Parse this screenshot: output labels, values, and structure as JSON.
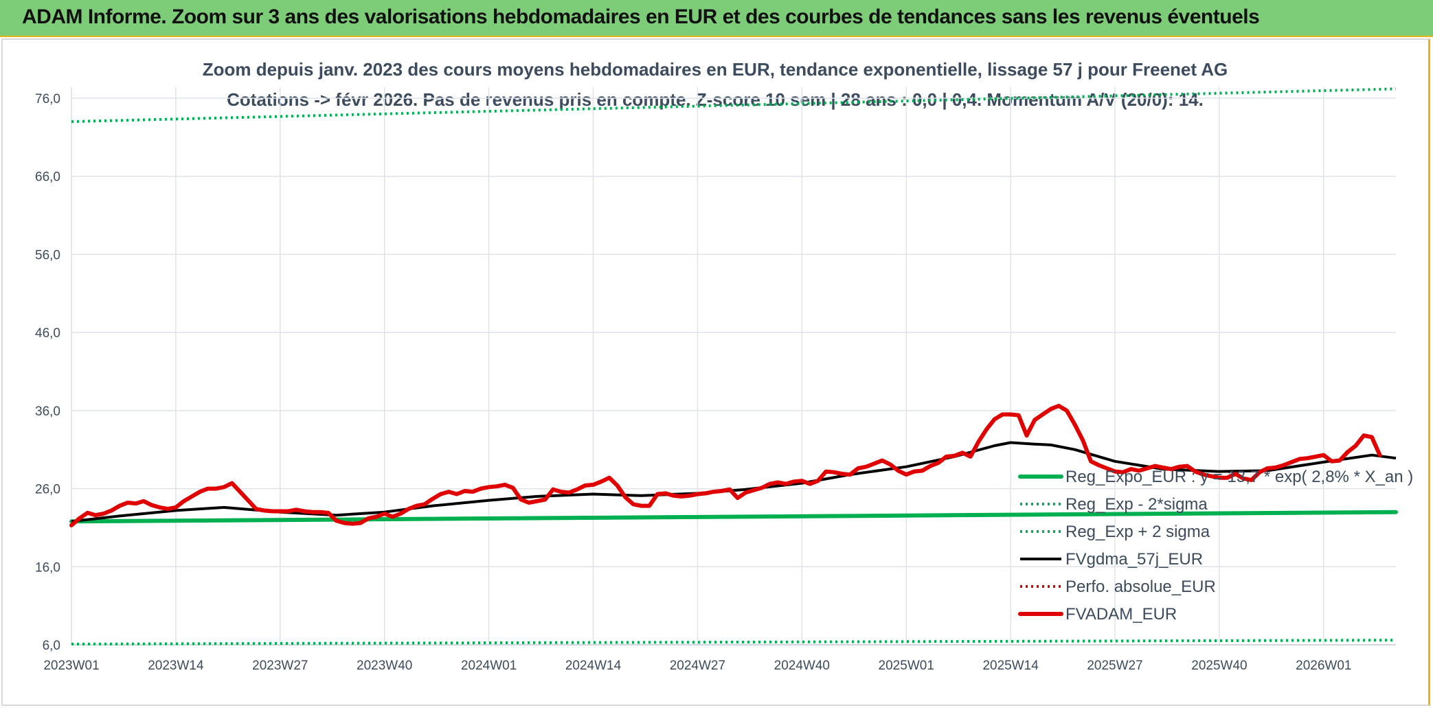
{
  "header": {
    "banner": "ADAM Informe. Zoom sur 3 ans des valorisations hebdomadaires en EUR et des courbes de tendances sans les revenus éventuels"
  },
  "chart_data": {
    "type": "line",
    "title": "Zoom depuis janv. 2023 des cours moyens hebdomadaires en EUR, tendance exponentielle, lissage 57 j pour Freenet AG",
    "subtitle": "Cotations -> févr 2026. Pas de revenus pris en compte. Z-score 10 sem | 28 ans : 0,0 | 0,4. Momentum A/V (20/0): 14.",
    "ylim": [
      6,
      76
    ],
    "y_ticks": [
      "6,0",
      "16,0",
      "26,0",
      "36,0",
      "46,0",
      "56,0",
      "66,0",
      "76,0"
    ],
    "x_ticks": [
      "2023W01",
      "2023W14",
      "2023W27",
      "2023W40",
      "2024W01",
      "2024W14",
      "2024W27",
      "2024W40",
      "2025W01",
      "2025W14",
      "2025W27",
      "2025W40",
      "2026W01"
    ],
    "x_tick_weeks": [
      0,
      13,
      26,
      39,
      52,
      65,
      78,
      91,
      104,
      117,
      130,
      143,
      156
    ],
    "x_range_weeks": [
      0,
      165
    ],
    "grid": true,
    "legend_position": "bottom-right",
    "series": [
      {
        "name": "Reg_Expo_EUR : y = 13,7 * exp( 2,8% * X_an )",
        "color": "#00b050",
        "style": "thick",
        "points": [
          [
            0,
            21.8
          ],
          [
            165,
            23.0
          ]
        ]
      },
      {
        "name": "Reg_Exp - 2*sigma",
        "color": "#00b050",
        "style": "dotted",
        "points": [
          [
            0,
            6.1
          ],
          [
            165,
            6.6
          ]
        ]
      },
      {
        "name": "Reg_Exp + 2 sigma",
        "color": "#00b050",
        "style": "dotted",
        "points": [
          [
            0,
            73.0
          ],
          [
            165,
            77.2
          ]
        ]
      },
      {
        "name": "FVgdma_57j_EUR",
        "color": "#000000",
        "style": "solid",
        "points": [
          [
            0,
            21.8
          ],
          [
            6,
            22.5
          ],
          [
            13,
            23.2
          ],
          [
            19,
            23.6
          ],
          [
            26,
            23.0
          ],
          [
            33,
            22.6
          ],
          [
            39,
            23.0
          ],
          [
            45,
            23.8
          ],
          [
            52,
            24.5
          ],
          [
            58,
            25.0
          ],
          [
            65,
            25.3
          ],
          [
            71,
            25.1
          ],
          [
            78,
            25.4
          ],
          [
            84,
            25.9
          ],
          [
            91,
            26.7
          ],
          [
            97,
            27.8
          ],
          [
            104,
            28.8
          ],
          [
            110,
            30.1
          ],
          [
            115,
            31.5
          ],
          [
            117,
            31.9
          ],
          [
            120,
            31.7
          ],
          [
            122,
            31.6
          ],
          [
            125,
            31.0
          ],
          [
            130,
            29.5
          ],
          [
            136,
            28.5
          ],
          [
            143,
            28.2
          ],
          [
            149,
            28.3
          ],
          [
            156,
            29.4
          ],
          [
            162,
            30.3
          ],
          [
            165,
            29.9
          ]
        ]
      },
      {
        "name": "Perfo. absolue_EUR",
        "color": "#e00000",
        "style": "dotted",
        "points": []
      },
      {
        "name": "FVADAM_EUR",
        "color": "#e00000",
        "style": "thick",
        "points": [
          [
            0,
            21.3
          ],
          [
            1,
            22.2
          ],
          [
            2,
            22.9
          ],
          [
            3,
            22.6
          ],
          [
            4,
            22.8
          ],
          [
            5,
            23.2
          ],
          [
            6,
            23.8
          ],
          [
            7,
            24.2
          ],
          [
            8,
            24.1
          ],
          [
            9,
            24.4
          ],
          [
            10,
            23.9
          ],
          [
            11,
            23.6
          ],
          [
            12,
            23.4
          ],
          [
            13,
            23.6
          ],
          [
            14,
            24.4
          ],
          [
            15,
            25.0
          ],
          [
            16,
            25.6
          ],
          [
            17,
            26.0
          ],
          [
            18,
            26.0
          ],
          [
            19,
            26.2
          ],
          [
            20,
            26.7
          ],
          [
            21,
            25.6
          ],
          [
            22,
            24.5
          ],
          [
            23,
            23.4
          ],
          [
            24,
            23.2
          ],
          [
            25,
            23.1
          ],
          [
            26,
            23.1
          ],
          [
            27,
            23.1
          ],
          [
            28,
            23.3
          ],
          [
            29,
            23.1
          ],
          [
            30,
            23.0
          ],
          [
            31,
            23.0
          ],
          [
            32,
            22.9
          ],
          [
            33,
            21.9
          ],
          [
            34,
            21.6
          ],
          [
            35,
            21.5
          ],
          [
            36,
            21.6
          ],
          [
            37,
            22.2
          ],
          [
            38,
            22.4
          ],
          [
            39,
            22.8
          ],
          [
            40,
            22.4
          ],
          [
            41,
            22.8
          ],
          [
            42,
            23.4
          ],
          [
            43,
            23.8
          ],
          [
            44,
            24.0
          ],
          [
            45,
            24.7
          ],
          [
            46,
            25.3
          ],
          [
            47,
            25.6
          ],
          [
            48,
            25.3
          ],
          [
            49,
            25.7
          ],
          [
            50,
            25.6
          ],
          [
            51,
            26.0
          ],
          [
            52,
            26.2
          ],
          [
            53,
            26.3
          ],
          [
            54,
            26.5
          ],
          [
            55,
            26.1
          ],
          [
            56,
            24.6
          ],
          [
            57,
            24.2
          ],
          [
            58,
            24.4
          ],
          [
            59,
            24.6
          ],
          [
            60,
            25.9
          ],
          [
            61,
            25.6
          ],
          [
            62,
            25.5
          ],
          [
            63,
            25.9
          ],
          [
            64,
            26.4
          ],
          [
            65,
            26.5
          ],
          [
            66,
            26.9
          ],
          [
            67,
            27.4
          ],
          [
            68,
            26.4
          ],
          [
            69,
            24.9
          ],
          [
            70,
            24.0
          ],
          [
            71,
            23.8
          ],
          [
            72,
            23.8
          ],
          [
            73,
            25.3
          ],
          [
            74,
            25.4
          ],
          [
            75,
            25.1
          ],
          [
            76,
            25.0
          ],
          [
            77,
            25.1
          ],
          [
            78,
            25.3
          ],
          [
            79,
            25.4
          ],
          [
            80,
            25.6
          ],
          [
            81,
            25.7
          ],
          [
            82,
            25.9
          ],
          [
            83,
            24.8
          ],
          [
            84,
            25.5
          ],
          [
            85,
            25.8
          ],
          [
            86,
            26.1
          ],
          [
            87,
            26.6
          ],
          [
            88,
            26.8
          ],
          [
            89,
            26.6
          ],
          [
            90,
            26.9
          ],
          [
            91,
            27.0
          ],
          [
            92,
            26.6
          ],
          [
            93,
            27.0
          ],
          [
            94,
            28.2
          ],
          [
            95,
            28.1
          ],
          [
            96,
            27.9
          ],
          [
            97,
            27.8
          ],
          [
            98,
            28.6
          ],
          [
            99,
            28.8
          ],
          [
            100,
            29.2
          ],
          [
            101,
            29.6
          ],
          [
            102,
            29.1
          ],
          [
            103,
            28.3
          ],
          [
            104,
            27.8
          ],
          [
            105,
            28.2
          ],
          [
            106,
            28.3
          ],
          [
            107,
            28.9
          ],
          [
            108,
            29.3
          ],
          [
            109,
            30.1
          ],
          [
            110,
            30.2
          ],
          [
            111,
            30.6
          ],
          [
            112,
            30.1
          ],
          [
            113,
            32.0
          ],
          [
            114,
            33.6
          ],
          [
            115,
            34.9
          ],
          [
            116,
            35.5
          ],
          [
            117,
            35.5
          ],
          [
            118,
            35.4
          ],
          [
            119,
            32.8
          ],
          [
            120,
            34.8
          ],
          [
            121,
            35.5
          ],
          [
            122,
            36.2
          ],
          [
            123,
            36.6
          ],
          [
            124,
            36.0
          ],
          [
            125,
            34.2
          ],
          [
            126,
            32.2
          ],
          [
            127,
            29.5
          ],
          [
            128,
            29.0
          ],
          [
            129,
            28.6
          ],
          [
            130,
            28.2
          ],
          [
            131,
            28.1
          ],
          [
            132,
            28.5
          ],
          [
            133,
            28.3
          ],
          [
            134,
            28.6
          ],
          [
            135,
            28.9
          ],
          [
            136,
            28.7
          ],
          [
            137,
            28.5
          ],
          [
            138,
            28.8
          ],
          [
            139,
            28.9
          ],
          [
            140,
            28.2
          ],
          [
            141,
            27.8
          ],
          [
            142,
            27.6
          ],
          [
            143,
            27.4
          ],
          [
            144,
            27.4
          ],
          [
            145,
            27.9
          ],
          [
            146,
            27.3
          ],
          [
            147,
            27.1
          ],
          [
            148,
            28.1
          ],
          [
            149,
            28.6
          ],
          [
            150,
            28.7
          ],
          [
            151,
            29.0
          ],
          [
            152,
            29.4
          ],
          [
            153,
            29.8
          ],
          [
            154,
            29.9
          ],
          [
            155,
            30.1
          ],
          [
            156,
            30.3
          ],
          [
            157,
            29.5
          ],
          [
            158,
            29.6
          ],
          [
            159,
            30.7
          ],
          [
            160,
            31.5
          ],
          [
            161,
            32.8
          ],
          [
            162,
            32.6
          ],
          [
            163,
            30.3
          ]
        ]
      }
    ]
  }
}
